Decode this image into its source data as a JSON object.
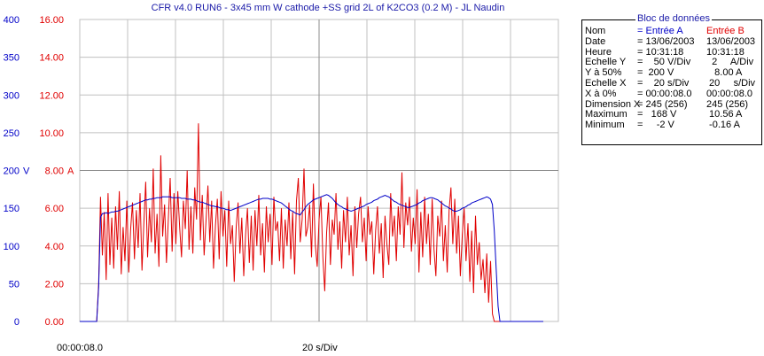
{
  "title": "CFR v4.0 RUN6 - 3x45 mm W cathode +SS grid 2L of K2CO3 (0.2 M) - JL Naudin",
  "bottom": {
    "time_start": "00:00:08.0",
    "time_div": "20 s/Div"
  },
  "colors": {
    "channel_a": "#0000c8",
    "channel_b": "#e00000",
    "grid": "#c0c0c0",
    "marker": "#ff0000"
  },
  "panel": {
    "title": "Bloc de données",
    "rows": [
      {
        "label": "Nom",
        "a": "= Entrée A",
        "b": "Entrée B",
        "a_color": "blue",
        "b_color": "red"
      },
      {
        "label": "Date",
        "a": "= 13/06/2003",
        "b": "13/06/2003"
      },
      {
        "label": "Heure",
        "a": "= 10:31:18",
        "b": "10:31:18"
      },
      {
        "label": "Echelle Y",
        "a": "=    50 V/Div",
        "b": "  2     A/Div"
      },
      {
        "label": "Y à 50%",
        "a": "=  200 V",
        "b": "   8.00 A"
      },
      {
        "label": "Echelle X",
        "a": "=    20 s/Div",
        "b": " 20     s/Div"
      },
      {
        "label": "X à 0%",
        "a": "= 00:00:08.0",
        "b": "00:00:08.0"
      },
      {
        "label": "Dimension X",
        "a": "= 245 (256)",
        "b": "245 (256)"
      },
      {
        "label": "Maximum",
        "a": "=   168 V",
        "b": " 10.56 A"
      },
      {
        "label": "Minimum",
        "a": "=     -2 V",
        "b": " -0.16 A"
      }
    ]
  },
  "chart_data": {
    "type": "line",
    "title": "CFR v4.0 RUN6 - 3x45 mm W cathode +SS grid 2L of K2CO3 (0.2 M) - JL Naudin",
    "xlabel": "20 s/Div",
    "x_start": "00:00:08.0",
    "y_left": {
      "unit": "V",
      "ticks": [
        "0",
        "50",
        "100",
        "150",
        "200",
        "250",
        "300",
        "350",
        "400"
      ],
      "ylim": [
        0,
        400
      ]
    },
    "y_right": {
      "unit": "A",
      "ticks": [
        "0.00",
        "2.00",
        "4.00",
        "6.00",
        "8.00",
        "10.00",
        "12.00",
        "14.00",
        "16.00"
      ],
      "ylim": [
        0,
        16
      ]
    },
    "grid": true,
    "markers": {
      "left": "V",
      "right": "A",
      "value_left": 200,
      "value_right": 8.0
    },
    "x_points": 245,
    "series": [
      {
        "name": "Entrée A",
        "axis": "left",
        "values": [
          0,
          0,
          0,
          0,
          0,
          0,
          0,
          0,
          0,
          0,
          45,
          138,
          143,
          143,
          144,
          143,
          144,
          145,
          145,
          146,
          146,
          147,
          148,
          149,
          150,
          151,
          152,
          153,
          154,
          155,
          156,
          157,
          158,
          159,
          160,
          161,
          161,
          162,
          162,
          163,
          163,
          164,
          164,
          164,
          165,
          165,
          165,
          165,
          165,
          164,
          164,
          164,
          164,
          164,
          163,
          163,
          163,
          162,
          162,
          162,
          161,
          161,
          160,
          159,
          158,
          158,
          157,
          156,
          155,
          154,
          153,
          153,
          152,
          152,
          151,
          150,
          150,
          149,
          148,
          148,
          147,
          148,
          149,
          150,
          151,
          152,
          153,
          154,
          155,
          156,
          157,
          158,
          159,
          160,
          161,
          162,
          162,
          163,
          163,
          163,
          163,
          162,
          162,
          161,
          160,
          159,
          158,
          157,
          155,
          153,
          151,
          149,
          147,
          146,
          144,
          143,
          142,
          141,
          145,
          148,
          152,
          155,
          157,
          159,
          161,
          162,
          163,
          164,
          165,
          166,
          167,
          168,
          167,
          165,
          163,
          160,
          157,
          155,
          153,
          152,
          150,
          149,
          148,
          147,
          146,
          147,
          148,
          149,
          150,
          151,
          152,
          153,
          155,
          156,
          157,
          158,
          160,
          161,
          162,
          164,
          165,
          166,
          167,
          166,
          165,
          163,
          161,
          159,
          158,
          156,
          155,
          154,
          153,
          152,
          151,
          151,
          152,
          153,
          154,
          155,
          157,
          158,
          160,
          161,
          162,
          163,
          164,
          164,
          163,
          162,
          161,
          159,
          157,
          155,
          153,
          152,
          150,
          149,
          147,
          146,
          146,
          147,
          148,
          150,
          151,
          152,
          154,
          155,
          157,
          158,
          159,
          160,
          161,
          162,
          163,
          164,
          165,
          164,
          162,
          155,
          120,
          70,
          20,
          0,
          0,
          0,
          0,
          0,
          0,
          0,
          0,
          0,
          0,
          0,
          0,
          0,
          0,
          0,
          0,
          0,
          0,
          0,
          0,
          0,
          0,
          0,
          0
        ]
      },
      {
        "name": "Entrée B",
        "axis": "right",
        "values": [
          0,
          0,
          0,
          0,
          0,
          0,
          0,
          0,
          0,
          0,
          2.0,
          6.6,
          3.5,
          5.8,
          2.2,
          6.8,
          3.0,
          5.5,
          2.8,
          6.1,
          3.8,
          6.9,
          2.5,
          5.0,
          3.2,
          6.4,
          2.6,
          4.9,
          6.3,
          3.3,
          5.9,
          3.9,
          6.8,
          2.7,
          5.2,
          7.4,
          3.4,
          6.0,
          4.2,
          8.1,
          3.6,
          5.7,
          2.9,
          8.8,
          4.5,
          6.2,
          3.1,
          5.4,
          7.6,
          3.7,
          6.8,
          4.1,
          6.9,
          5.0,
          3.4,
          6.4,
          4.9,
          8.0,
          3.8,
          6.1,
          3.6,
          7.1,
          5.4,
          10.5,
          4.3,
          6.7,
          3.5,
          5.3,
          7.2,
          4.2,
          6.4,
          2.8,
          5.1,
          6.5,
          3.3,
          6.9,
          4.5,
          5.9,
          2.9,
          6.4,
          4.1,
          5.1,
          2.1,
          5.0,
          6.3,
          3.6,
          5.5,
          2.4,
          4.6,
          6.0,
          3.1,
          5.6,
          2.7,
          5.9,
          4.0,
          6.7,
          3.5,
          5.2,
          2.6,
          6.1,
          4.2,
          5.7,
          3.0,
          6.6,
          4.8,
          5.3,
          3.2,
          6.0,
          2.8,
          5.4,
          4.0,
          6.3,
          3.3,
          5.8,
          2.5,
          6.4,
          7.6,
          4.2,
          5.4,
          8.1,
          4.5,
          5.0,
          6.2,
          3.4,
          7.3,
          4.1,
          2.9,
          5.4,
          6.6,
          3.4,
          1.6,
          4.7,
          6.3,
          3.0,
          5.4,
          4.6,
          6.8,
          3.8,
          5.3,
          2.8,
          5.9,
          4.2,
          6.6,
          3.5,
          5.1,
          2.4,
          6.1,
          3.9,
          5.7,
          6.6,
          4.2,
          5.5,
          3.2,
          6.1,
          4.6,
          5.3,
          2.5,
          4.8,
          6.1,
          3.6,
          5.2,
          2.3,
          5.6,
          4.1,
          3.0,
          6.8,
          4.5,
          5.6,
          3.2,
          6.1,
          4.6,
          7.9,
          3.9,
          6.3,
          5.1,
          6.6,
          3.7,
          5.5,
          4.1,
          7.0,
          2.6,
          5.8,
          3.4,
          6.6,
          4.1,
          5.7,
          3.0,
          6.5,
          3.8,
          2.4,
          5.6,
          4.5,
          6.4,
          3.2,
          5.1,
          2.6,
          5.9,
          7.1,
          4.1,
          6.5,
          3.6,
          5.6,
          2.4,
          4.6,
          6.0,
          3.2,
          5.2,
          2.1,
          4.8,
          1.5,
          5.6,
          3.0,
          4.2,
          2.2,
          3.3,
          1.5,
          3.6,
          1.0,
          3.2,
          0.4,
          0.0,
          0.0,
          0.0,
          0.0,
          0.0,
          0.0,
          0.0,
          0.0,
          0.0,
          0.0,
          0.0,
          0.0,
          0.0,
          0.0,
          0.0,
          0.0,
          0.0,
          0.0,
          0.0,
          0.0,
          0.0,
          0.0,
          0.0
        ]
      }
    ]
  }
}
